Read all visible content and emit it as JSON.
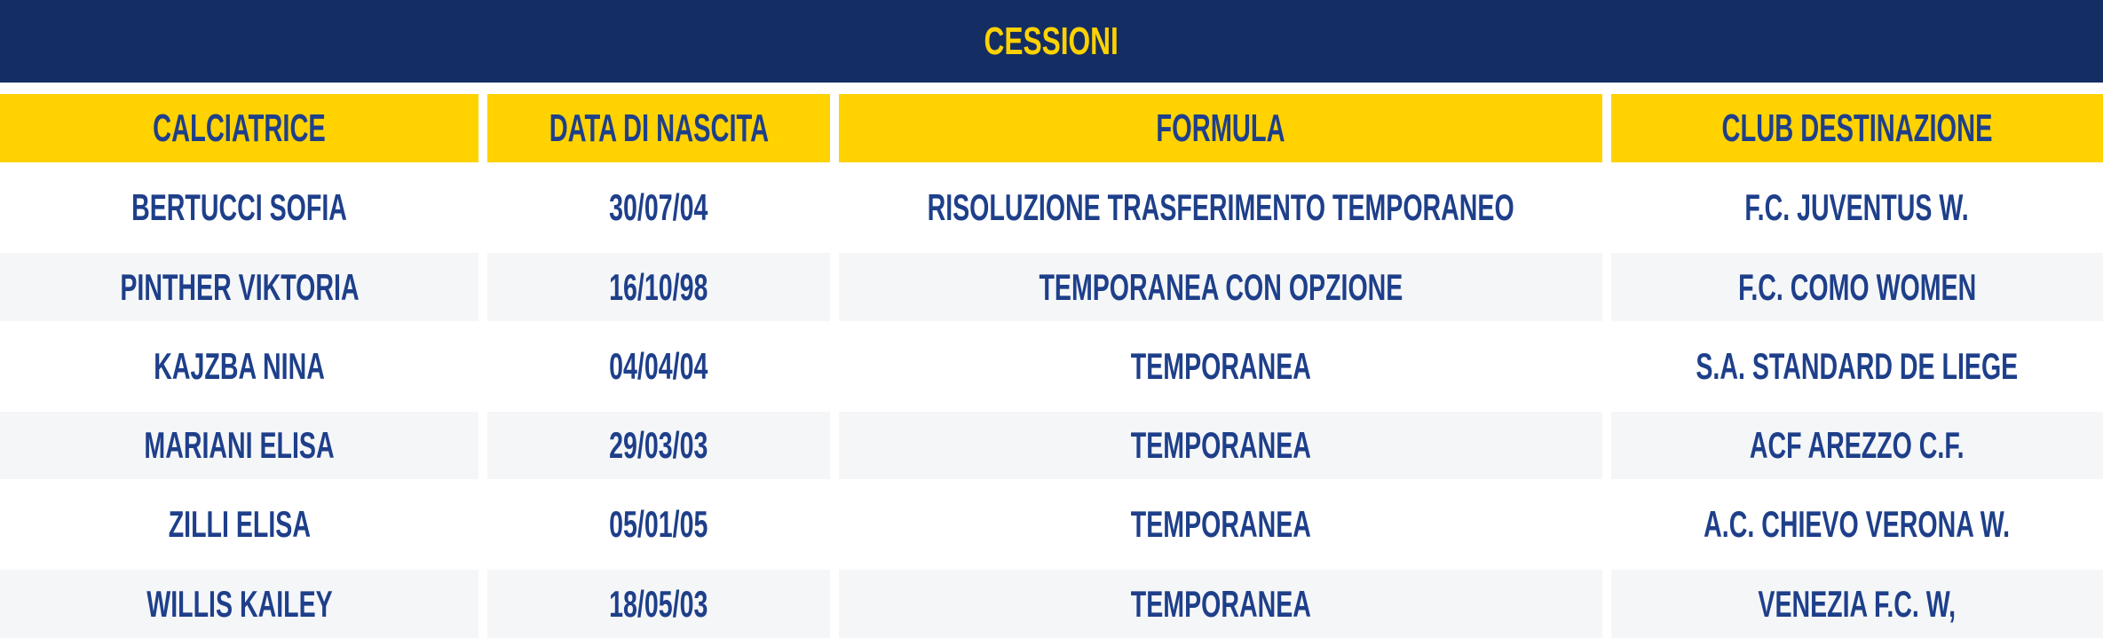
{
  "title": "CESSIONI",
  "colors": {
    "title_bg": "#142d63",
    "accent_yellow": "#ffd200",
    "text_navy": "#1e3f8a",
    "row_alt": "#f5f6f8"
  },
  "columns": [
    "CALCIATRICE",
    "DATA DI NASCITA",
    "FORMULA",
    "CLUB DESTINAZIONE"
  ],
  "rows": [
    [
      "BERTUCCI SOFIA",
      "30/07/04",
      "RISOLUZIONE TRASFERIMENTO TEMPORANEO",
      "F.C. JUVENTUS W."
    ],
    [
      "PINTHER VIKTORIA",
      "16/10/98",
      "TEMPORANEA CON OPZIONE",
      "F.C. COMO WOMEN"
    ],
    [
      "KAJZBA NINA",
      "04/04/04",
      "TEMPORANEA",
      "S.A. STANDARD DE LIEGE"
    ],
    [
      "MARIANI ELISA",
      "29/03/03",
      "TEMPORANEA",
      "ACF AREZZO C.F."
    ],
    [
      "ZILLI ELISA",
      "05/01/05",
      "TEMPORANEA",
      "A.C. CHIEVO VERONA W."
    ],
    [
      "WILLIS KAILEY",
      "18/05/03",
      "TEMPORANEA",
      "VENEZIA F.C. W,"
    ]
  ]
}
